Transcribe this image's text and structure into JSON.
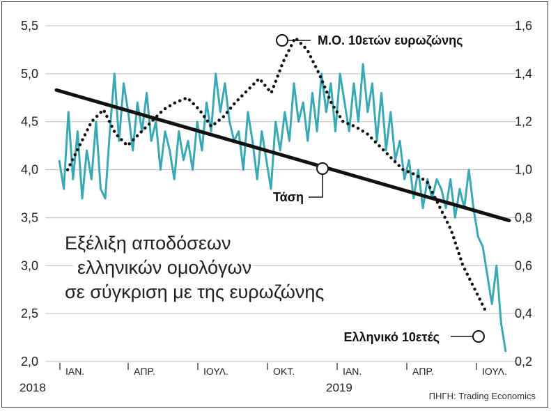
{
  "chart_data": {
    "type": "line",
    "title_lines": [
      "Εξέλιξη αποδόσεων",
      "ελληνικών ομολόγων",
      "σε σύγκριση με της ευρωζώνης"
    ],
    "source": "ΠΗΓΗ: Trading Economics",
    "y_left": {
      "ticks": [
        "5,5",
        "5,0",
        "4,5",
        "4,0",
        "3,5",
        "3,0",
        "2,5",
        "2,0"
      ],
      "range": [
        2.0,
        5.5
      ]
    },
    "y_right": {
      "ticks": [
        "1,6",
        "1,4",
        "1,2",
        "1,0",
        "0,8",
        "0,6",
        "0,4",
        "0,2"
      ],
      "range": [
        0.2,
        1.6
      ]
    },
    "x_months": [
      "ΙΑΝ.",
      "ΑΠΡ.",
      "ΙΟΥΛ.",
      "ΟΚΤ.",
      "ΙΑΝ.",
      "ΑΠΡ.",
      "ΙΟΥΛ."
    ],
    "x_years": [
      "2018",
      "2019"
    ],
    "series": [
      {
        "name": "Ελληνικό 10ετές",
        "axis": "left",
        "color": "#3aa9b4",
        "x": [
          0.0,
          0.2,
          0.4,
          0.6,
          0.8,
          1.0,
          1.2,
          1.4,
          1.6,
          1.8,
          2.0,
          2.2,
          2.4,
          2.6,
          2.8,
          3.0,
          3.2,
          3.4,
          3.6,
          3.8,
          4.0,
          4.2,
          4.4,
          4.6,
          4.8,
          5.0,
          5.2,
          5.4,
          5.6,
          5.8,
          6.0,
          6.2,
          6.4,
          6.6,
          6.8,
          7.0,
          7.2,
          7.4,
          7.6,
          7.8,
          8.0,
          8.2,
          8.4,
          8.6,
          8.8,
          9.0,
          9.2,
          9.4,
          9.6,
          9.8,
          10.0,
          10.2,
          10.4,
          10.6,
          10.8,
          11.0,
          11.2,
          11.4,
          11.6,
          11.8,
          12.0,
          12.2,
          12.4,
          12.6,
          12.8,
          13.0,
          13.2,
          13.4,
          13.6,
          13.8,
          14.0,
          14.2,
          14.4,
          14.6,
          14.8,
          15.0,
          15.2,
          15.4,
          15.6,
          15.8,
          16.0,
          16.2,
          16.4,
          16.6,
          16.8,
          17.0,
          17.2,
          17.4,
          17.6,
          17.8,
          18.0,
          18.2,
          18.4,
          18.6,
          18.8,
          19.0,
          19.2,
          19.4
        ],
        "values": [
          4.1,
          3.8,
          4.6,
          3.9,
          4.4,
          3.7,
          4.2,
          3.9,
          4.5,
          3.8,
          3.7,
          4.4,
          5.0,
          4.3,
          4.9,
          4.6,
          4.2,
          4.7,
          4.4,
          4.8,
          4.3,
          4.5,
          4.0,
          4.4,
          4.2,
          3.9,
          4.4,
          4.1,
          4.3,
          4.0,
          4.5,
          4.2,
          4.7,
          4.4,
          5.0,
          4.6,
          4.9,
          4.5,
          4.3,
          4.4,
          4.0,
          4.6,
          4.3,
          3.9,
          4.4,
          4.1,
          3.8,
          4.5,
          4.2,
          4.6,
          4.3,
          4.9,
          4.5,
          4.7,
          4.3,
          4.8,
          4.4,
          5.0,
          4.6,
          4.9,
          4.4,
          5.0,
          4.7,
          4.4,
          4.9,
          4.5,
          5.1,
          4.6,
          4.9,
          4.3,
          4.8,
          4.2,
          4.6,
          4.1,
          4.3,
          3.9,
          4.1,
          3.7,
          4.0,
          3.6,
          3.9,
          3.7,
          3.9,
          3.8,
          3.6,
          3.9,
          3.5,
          3.8,
          3.6,
          4.0,
          3.6,
          3.3,
          3.2,
          2.9,
          2.6,
          3.0,
          2.4,
          2.1
        ]
      },
      {
        "name": "Μ.Ο. 10ετών ευρωζώνης",
        "axis": "right",
        "color": "#111111",
        "x": [
          0,
          2,
          4,
          6,
          8,
          10,
          12,
          14,
          16,
          18,
          20,
          22,
          24,
          26,
          28,
          30,
          32,
          34,
          36,
          38,
          40,
          42,
          44,
          46,
          48,
          50,
          52,
          54,
          56,
          58,
          60,
          62,
          64,
          66,
          68,
          70
        ],
        "values": [
          1.0,
          1.1,
          1.2,
          1.25,
          1.15,
          1.1,
          1.15,
          1.2,
          1.25,
          1.28,
          1.3,
          1.25,
          1.18,
          1.22,
          1.28,
          1.33,
          1.38,
          1.32,
          1.45,
          1.55,
          1.5,
          1.4,
          1.28,
          1.2,
          1.18,
          1.15,
          1.1,
          1.05,
          1.0,
          0.98,
          0.95,
          0.85,
          0.75,
          0.6,
          0.5,
          0.4
        ]
      },
      {
        "name": "Τάση",
        "axis": "left",
        "color": "#111111",
        "x": [
          0,
          100
        ],
        "values": [
          4.83,
          3.47
        ]
      }
    ],
    "annotations": {
      "eurozone_label": "Μ.Ο. 10ετών ευρωζώνης",
      "trend_label": "Τάση",
      "greek_label": "Ελληνικό 10ετές"
    },
    "grid": "horizontal"
  }
}
